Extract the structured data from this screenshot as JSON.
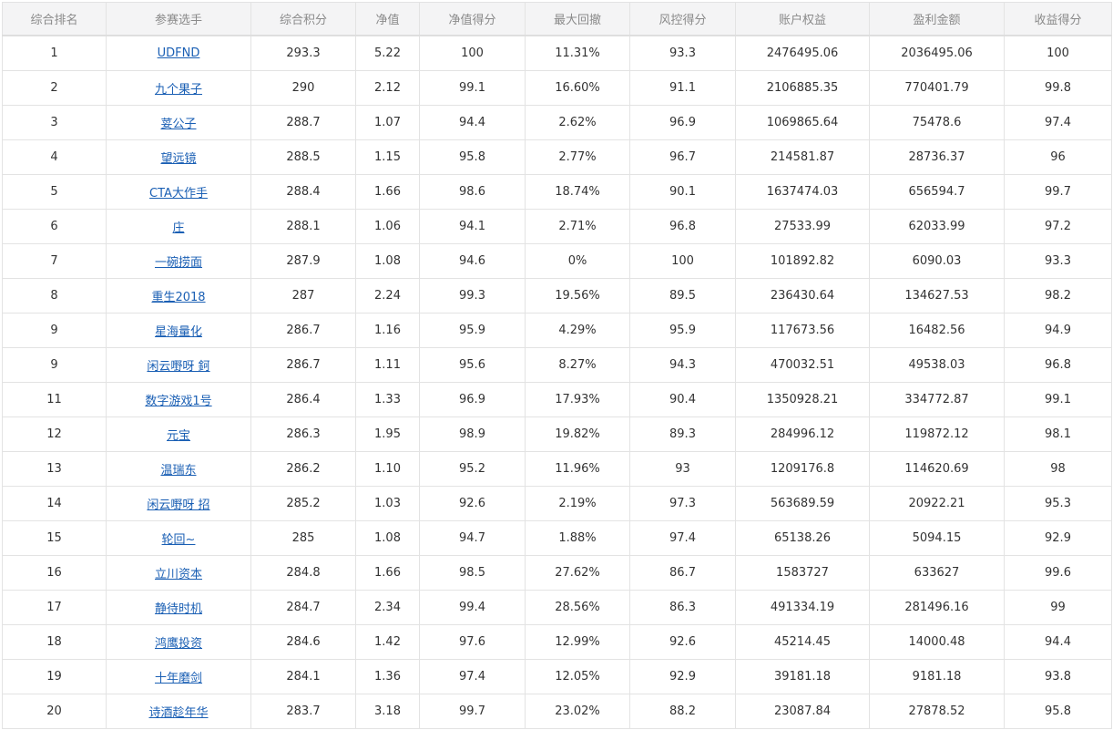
{
  "table": {
    "headers": [
      "综合排名",
      "参赛选手",
      "综合积分",
      "净值",
      "净值得分",
      "最大回撤",
      "风控得分",
      "账户权益",
      "盈利金额",
      "收益得分"
    ],
    "rows": [
      [
        "1",
        "UDFND",
        "293.3",
        "5.22",
        "100",
        "11.31%",
        "93.3",
        "2476495.06",
        "2036495.06",
        "100"
      ],
      [
        "2",
        "九个果子",
        "290",
        "2.12",
        "99.1",
        "16.60%",
        "91.1",
        "2106885.35",
        "770401.79",
        "99.8"
      ],
      [
        "3",
        "荽公子",
        "288.7",
        "1.07",
        "94.4",
        "2.62%",
        "96.9",
        "1069865.64",
        "75478.6",
        "97.4"
      ],
      [
        "4",
        "望远镜",
        "288.5",
        "1.15",
        "95.8",
        "2.77%",
        "96.7",
        "214581.87",
        "28736.37",
        "96"
      ],
      [
        "5",
        "CTA大作手",
        "288.4",
        "1.66",
        "98.6",
        "18.74%",
        "90.1",
        "1637474.03",
        "656594.7",
        "99.7"
      ],
      [
        "6",
        "庄",
        "288.1",
        "1.06",
        "94.1",
        "2.71%",
        "96.8",
        "27533.99",
        "62033.99",
        "97.2"
      ],
      [
        "7",
        "一碗捞面",
        "287.9",
        "1.08",
        "94.6",
        "0%",
        "100",
        "101892.82",
        "6090.03",
        "93.3"
      ],
      [
        "8",
        "重生2018",
        "287",
        "2.24",
        "99.3",
        "19.56%",
        "89.5",
        "236430.64",
        "134627.53",
        "98.2"
      ],
      [
        "9",
        "星海量化",
        "286.7",
        "1.16",
        "95.9",
        "4.29%",
        "95.9",
        "117673.56",
        "16482.56",
        "94.9"
      ],
      [
        "9",
        "闲云嘢呀 鈳",
        "286.7",
        "1.11",
        "95.6",
        "8.27%",
        "94.3",
        "470032.51",
        "49538.03",
        "96.8"
      ],
      [
        "11",
        "数字游戏1号",
        "286.4",
        "1.33",
        "96.9",
        "17.93%",
        "90.4",
        "1350928.21",
        "334772.87",
        "99.1"
      ],
      [
        "12",
        "元宝",
        "286.3",
        "1.95",
        "98.9",
        "19.82%",
        "89.3",
        "284996.12",
        "119872.12",
        "98.1"
      ],
      [
        "13",
        "温瑞东",
        "286.2",
        "1.10",
        "95.2",
        "11.96%",
        "93",
        "1209176.8",
        "114620.69",
        "98"
      ],
      [
        "14",
        "闲云嘢呀 招",
        "285.2",
        "1.03",
        "92.6",
        "2.19%",
        "97.3",
        "563689.59",
        "20922.21",
        "95.3"
      ],
      [
        "15",
        "轮回~",
        "285",
        "1.08",
        "94.7",
        "1.88%",
        "97.4",
        "65138.26",
        "5094.15",
        "92.9"
      ],
      [
        "16",
        "立川资本",
        "284.8",
        "1.66",
        "98.5",
        "27.62%",
        "86.7",
        "1583727",
        "633627",
        "99.6"
      ],
      [
        "17",
        "静待时机",
        "284.7",
        "2.34",
        "99.4",
        "28.56%",
        "86.3",
        "491334.19",
        "281496.16",
        "99"
      ],
      [
        "18",
        "鸿鹰投资",
        "284.6",
        "1.42",
        "97.6",
        "12.99%",
        "92.6",
        "45214.45",
        "14000.48",
        "94.4"
      ],
      [
        "19",
        "十年磨剑",
        "284.1",
        "1.36",
        "97.4",
        "12.05%",
        "92.9",
        "39181.18",
        "9181.18",
        "93.8"
      ],
      [
        "20",
        "诗酒趁年华",
        "283.7",
        "3.18",
        "99.7",
        "23.02%",
        "88.2",
        "23087.84",
        "27878.52",
        "95.8"
      ]
    ]
  },
  "colors": {
    "header_bg": "#f4f4f5",
    "header_text": "#8a8a8a",
    "border": "#e3e3e3",
    "link": "#1a5fb4",
    "text": "#333333"
  }
}
